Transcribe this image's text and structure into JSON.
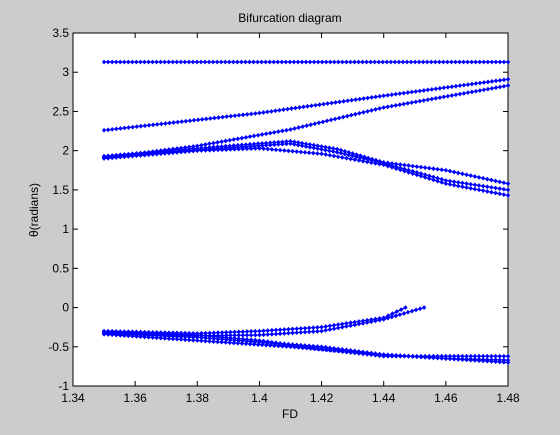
{
  "chart_data": {
    "type": "scatter",
    "title": "Bifurcation diagram",
    "xlabel": "FD",
    "ylabel": "θ(radians)",
    "xlim": [
      1.34,
      1.48
    ],
    "ylim": [
      -1,
      3.5
    ],
    "xticks": [
      "1.34",
      "1.36",
      "1.38",
      "1.4",
      "1.42",
      "1.44",
      "1.46",
      "1.48"
    ],
    "yticks": [
      "-1",
      "-0.5",
      "0",
      "0.5",
      "1",
      "1.5",
      "2",
      "2.5",
      "3",
      "3.5"
    ],
    "grid": false,
    "legend": "none",
    "marker": "diamond",
    "series": [
      {
        "x": [
          1.35,
          1.48
        ],
        "y": [
          3.13,
          3.13
        ]
      },
      {
        "x": [
          1.35,
          1.4,
          1.44,
          1.48
        ],
        "y": [
          2.26,
          2.48,
          2.7,
          2.91
        ]
      },
      {
        "x": [
          1.35,
          1.38,
          1.41,
          1.44,
          1.48
        ],
        "y": [
          1.91,
          2.06,
          2.27,
          2.55,
          2.83
        ]
      },
      {
        "x": [
          1.35,
          1.38,
          1.41,
          1.425,
          1.44,
          1.46,
          1.48
        ],
        "y": [
          1.93,
          2.03,
          2.12,
          2.02,
          1.85,
          1.75,
          1.58
        ]
      },
      {
        "x": [
          1.35,
          1.38,
          1.41,
          1.425,
          1.44,
          1.46,
          1.48
        ],
        "y": [
          1.92,
          2.01,
          2.09,
          1.98,
          1.84,
          1.62,
          1.5
        ]
      },
      {
        "x": [
          1.35,
          1.38,
          1.4,
          1.42,
          1.44,
          1.46,
          1.48
        ],
        "y": [
          1.9,
          2.0,
          2.03,
          1.96,
          1.82,
          1.58,
          1.43
        ]
      },
      {
        "x": [
          1.35,
          1.38,
          1.4,
          1.42,
          1.44,
          1.447
        ],
        "y": [
          -0.3,
          -0.33,
          -0.3,
          -0.25,
          -0.13,
          0.0
        ]
      },
      {
        "x": [
          1.35,
          1.38,
          1.4,
          1.42,
          1.44,
          1.453
        ],
        "y": [
          -0.32,
          -0.36,
          -0.35,
          -0.3,
          -0.15,
          0.0
        ]
      },
      {
        "x": [
          1.35,
          1.38,
          1.4,
          1.42,
          1.44,
          1.46,
          1.48
        ],
        "y": [
          -0.33,
          -0.38,
          -0.44,
          -0.5,
          -0.6,
          -0.65,
          -0.67
        ]
      },
      {
        "x": [
          1.35,
          1.38,
          1.41,
          1.44,
          1.46,
          1.48
        ],
        "y": [
          -0.34,
          -0.42,
          -0.5,
          -0.6,
          -0.65,
          -0.7
        ]
      },
      {
        "x": [
          1.35,
          1.38,
          1.4,
          1.42,
          1.44,
          1.46,
          1.48
        ],
        "y": [
          -0.31,
          -0.35,
          -0.42,
          -0.53,
          -0.62,
          -0.62,
          -0.62
        ]
      }
    ],
    "colors": {
      "marker": "#0000ff",
      "background": "#cccccc",
      "axes": "#ffffff",
      "text": "#000000"
    }
  }
}
